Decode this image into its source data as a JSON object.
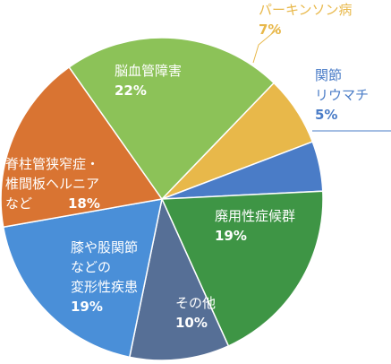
{
  "chart_data": {
    "type": "pie",
    "title": "",
    "slices": [
      {
        "label_lines": [
          "パーキンソン病"
        ],
        "value": 7,
        "value_text": "7%",
        "color": "#E8B84A",
        "text_color": "#E8B84A",
        "outside": true
      },
      {
        "label_lines": [
          "関節",
          "リウマチ"
        ],
        "value": 5,
        "value_text": "5%",
        "color": "#4A7CC7",
        "text_color": "#4A7CC7",
        "outside": true
      },
      {
        "label_lines": [
          "廃用性症候群"
        ],
        "value": 19,
        "value_text": "19%",
        "color": "#3E9545",
        "text_color": "#FFFFFF",
        "outside": false
      },
      {
        "label_lines": [
          "その他"
        ],
        "value": 10,
        "value_text": "10%",
        "color": "#566F96",
        "text_color": "#FFFFFF",
        "outside": false
      },
      {
        "label_lines": [
          "膝や股関節",
          "などの",
          "変形性疾患"
        ],
        "value": 19,
        "value_text": "19%",
        "color": "#4A8FD8",
        "text_color": "#FFFFFF",
        "outside": false
      },
      {
        "label_lines": [
          "脊柱管狭窄症・",
          "椎間板ヘルニア",
          "など"
        ],
        "value": 18,
        "value_text": "18%",
        "color": "#D97432",
        "text_color": "#FFFFFF",
        "outside": false
      },
      {
        "label_lines": [
          "脳血管障害"
        ],
        "value": 22,
        "value_text": "22%",
        "color": "#8CC258",
        "text_color": "#FFFFFF",
        "outside": false
      }
    ]
  }
}
